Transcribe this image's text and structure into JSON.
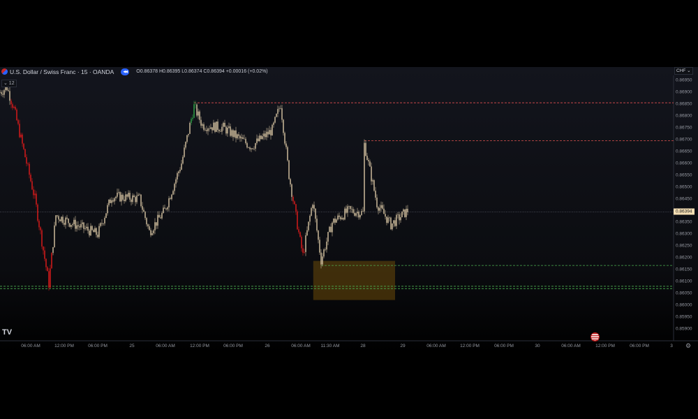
{
  "header": {
    "symbol": "U.S. Dollar / Swiss Franc · 15 · OANDA",
    "ohlc": "O0.86378 H0.86395 L0.86374 C0.86394 +0.00016 (+0.02%)",
    "indicator_count": "⌄ 12",
    "currency": "CHF ⌄",
    "replay_icon": "rewind-icon"
  },
  "chart_data": {
    "type": "candlestick",
    "title": "U.S. Dollar / Swiss Franc · 15 · OANDA",
    "y_ticks": [
      "0.86950",
      "0.86900",
      "0.86850",
      "0.86800",
      "0.86750",
      "0.86700",
      "0.86650",
      "0.86600",
      "0.86550",
      "0.86500",
      "0.86450",
      "0.86350",
      "0.86300",
      "0.86250",
      "0.86200",
      "0.86150",
      "0.86100",
      "0.86050",
      "0.86000",
      "0.85950",
      "0.85900"
    ],
    "ylim": [
      0.8588,
      0.8697
    ],
    "last_price": "0.86394",
    "x_ticks": [
      "06:00 AM",
      "12:00 PM",
      "06:00 PM",
      "25",
      "06:00 AM",
      "12:00 PM",
      "06:00 PM",
      "26",
      "06:00 AM",
      "11:30 AM",
      "28",
      "29",
      "06:00 AM",
      "12:00 PM",
      "06:00 PM",
      "30",
      "06:00 AM",
      "12:00 PM",
      "06:00 PM",
      "3"
    ],
    "price_path": [
      [
        "24 00:30",
        0.869
      ],
      [
        "24 01:45",
        0.8692
      ],
      [
        "24 03:00",
        0.8683
      ],
      [
        "24 06:45",
        0.8645
      ],
      [
        "24 09:15",
        0.8609
      ],
      [
        "24 10:30",
        0.8638
      ],
      [
        "24 13:00",
        0.8635
      ],
      [
        "24 18:00",
        0.863
      ],
      [
        "24 20:30",
        0.8646
      ],
      [
        "25 01:30",
        0.8645
      ],
      [
        "25 03:15",
        0.8631
      ],
      [
        "25 06:00",
        0.864
      ],
      [
        "25 09:00",
        0.866
      ],
      [
        "25 11:15",
        0.8684
      ],
      [
        "25 12:45",
        0.8676
      ],
      [
        "25 16:30",
        0.8675
      ],
      [
        "25 21:30",
        0.8667
      ],
      [
        "26 01:15",
        0.8674
      ],
      [
        "26 02:45",
        0.8685
      ],
      [
        "26 04:15",
        0.8655
      ],
      [
        "26 06:15",
        0.8627
      ],
      [
        "26 06:45",
        0.8621
      ],
      [
        "26 08:30",
        0.8644
      ],
      [
        "26 10:00",
        0.8619
      ],
      [
        "26 12:00",
        0.8635
      ],
      [
        "26 15:00",
        0.864
      ],
      [
        "26 17:30",
        0.8639
      ],
      [
        "26 17:45",
        0.8668
      ],
      [
        "26 20:00",
        0.8643
      ],
      [
        "26 22:30",
        0.8634
      ],
      [
        "27 01:30",
        0.864
      ]
    ],
    "levels": [
      {
        "price": 0.86855,
        "from": "25 11:15",
        "color": "#e05050"
      },
      {
        "price": 0.86695,
        "from": "26 17:45",
        "color": "#c04848"
      },
      {
        "price": 0.86168,
        "from": "26 10:00",
        "color": "#4caf50"
      },
      {
        "price": 0.8608,
        "from": "24 00:00",
        "color": "#4caf50"
      },
      {
        "price": 0.8607,
        "from": "24 00:00",
        "color": "#4caf50"
      }
    ],
    "zone": {
      "from": "26 08:36",
      "to": "26 23:15",
      "top": 0.86187,
      "bottom": 0.86022,
      "color": "#6b4a0a"
    },
    "colors": {
      "candle": "#cdbb9b",
      "down": "#d81b1b",
      "up": "#2e9e44"
    }
  }
}
